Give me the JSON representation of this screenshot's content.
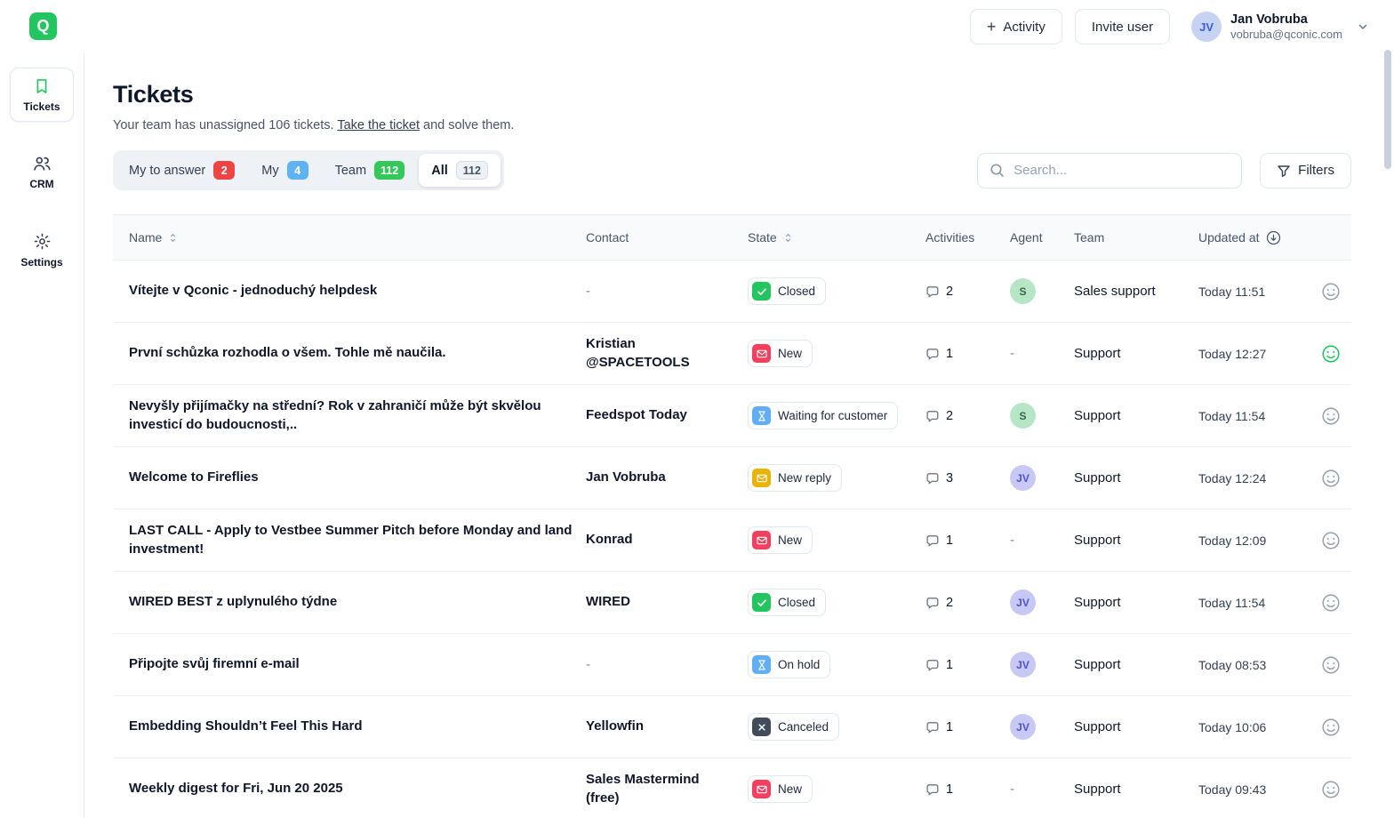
{
  "app": {
    "logo_letter": "Q",
    "brand_color": "#22c55e"
  },
  "topbar": {
    "activity_button": "Activity",
    "invite_button": "Invite user",
    "user": {
      "initials": "JV",
      "name": "Jan Vobruba",
      "email": "vobruba@qconic.com"
    }
  },
  "sidebar": {
    "items": [
      {
        "label": "Tickets",
        "icon": "bookmark-icon",
        "active": true
      },
      {
        "label": "CRM",
        "icon": "people-icon",
        "active": false
      },
      {
        "label": "Settings",
        "icon": "gear-icon",
        "active": false
      }
    ]
  },
  "page": {
    "title": "Tickets",
    "subtitle_prefix": "Your team has unassigned 106 tickets. ",
    "subtitle_link": "Take the ticket",
    "subtitle_suffix": " and solve them."
  },
  "tabs": [
    {
      "label": "My to answer",
      "count": "2",
      "badge_bg": "#ef4444",
      "badge_fg": "#ffffff",
      "active": false
    },
    {
      "label": "My",
      "count": "4",
      "badge_bg": "#5fb3f5",
      "badge_fg": "#ffffff",
      "active": false
    },
    {
      "label": "Team",
      "count": "112",
      "badge_bg": "#34c759",
      "badge_fg": "#ffffff",
      "active": false
    },
    {
      "label": "All",
      "count": "112",
      "badge_bg": "#eef1f5",
      "badge_fg": "#475569",
      "badge_border": "#d8dee6",
      "active": true
    }
  ],
  "search": {
    "placeholder": "Search..."
  },
  "filters_label": "Filters",
  "state_styles": {
    "closed": {
      "color": "#22c55e",
      "icon": "check"
    },
    "new": {
      "color": "#f43f5e",
      "icon": "envelope"
    },
    "waiting": {
      "color": "#62aef5",
      "icon": "hourglass"
    },
    "new_reply": {
      "color": "#eab308",
      "icon": "envelope"
    },
    "on_hold": {
      "color": "#62aef5",
      "icon": "hourglass"
    },
    "canceled": {
      "color": "#414b5a",
      "icon": "x"
    }
  },
  "avatar_styles": {
    "green": {
      "bg": "#b7e6c6",
      "fg": "#35684a"
    },
    "purple": {
      "bg": "#c7c8f3",
      "fg": "#5350c9"
    }
  },
  "table": {
    "columns": [
      {
        "label": "Name",
        "sort": "sortable"
      },
      {
        "label": "Contact",
        "sort": "none"
      },
      {
        "label": "State",
        "sort": "sortable"
      },
      {
        "label": "Activities",
        "sort": "none"
      },
      {
        "label": "Agent",
        "sort": "none"
      },
      {
        "label": "Team",
        "sort": "none"
      },
      {
        "label": "Updated at",
        "sort": "desc"
      }
    ],
    "rows": [
      {
        "name": "Vítejte v Qconic - jednoduchý helpdesk",
        "contact": "-",
        "state": "Closed",
        "state_type": "closed",
        "activities": "2",
        "agent": "S",
        "agent_style": "green",
        "team": "Sales support",
        "updated": "Today 11:51",
        "satisfaction": "neutral"
      },
      {
        "name": "První schůzka rozhodla o všem. Tohle mě naučila.",
        "contact": "Kristian @SPACETOOLS",
        "state": "New",
        "state_type": "new",
        "activities": "1",
        "agent": "",
        "agent_style": "",
        "team": "Support",
        "updated": "Today 12:27",
        "satisfaction": "positive"
      },
      {
        "name": "Nevyšly přijímačky na střední? Rok v zahraničí může být skvělou investicí do budoucnosti,..",
        "contact": "Feedspot Today",
        "state": "Waiting for customer",
        "state_type": "waiting",
        "activities": "2",
        "agent": "S",
        "agent_style": "green",
        "team": "Support",
        "updated": "Today 11:54",
        "satisfaction": "neutral"
      },
      {
        "name": "Welcome to Fireflies",
        "contact": "Jan Vobruba",
        "state": "New reply",
        "state_type": "new_reply",
        "activities": "3",
        "agent": "JV",
        "agent_style": "purple",
        "team": "Support",
        "updated": "Today 12:24",
        "satisfaction": "neutral"
      },
      {
        "name": "LAST CALL - Apply to Vestbee Summer Pitch before Monday and land investment!",
        "contact": "Konrad",
        "state": "New",
        "state_type": "new",
        "activities": "1",
        "agent": "",
        "agent_style": "",
        "team": "Support",
        "updated": "Today 12:09",
        "satisfaction": "neutral"
      },
      {
        "name": "WIRED BEST z uplynulého týdne",
        "contact": "WIRED",
        "state": "Closed",
        "state_type": "closed",
        "activities": "2",
        "agent": "JV",
        "agent_style": "purple",
        "team": "Support",
        "updated": "Today 11:54",
        "satisfaction": "neutral"
      },
      {
        "name": "Připojte svůj firemní e-mail",
        "contact": "-",
        "state": "On hold",
        "state_type": "on_hold",
        "activities": "1",
        "agent": "JV",
        "agent_style": "purple",
        "team": "Support",
        "updated": "Today 08:53",
        "satisfaction": "neutral"
      },
      {
        "name": "Embedding Shouldn’t Feel This Hard",
        "contact": "Yellowfin",
        "state": "Canceled",
        "state_type": "canceled",
        "activities": "1",
        "agent": "JV",
        "agent_style": "purple",
        "team": "Support",
        "updated": "Today 10:06",
        "satisfaction": "neutral"
      },
      {
        "name": "Weekly digest for Fri, Jun 20 2025",
        "contact": "Sales Mastermind (free)",
        "state": "New",
        "state_type": "new",
        "activities": "1",
        "agent": "",
        "agent_style": "",
        "team": "Support",
        "updated": "Today 09:43",
        "satisfaction": "neutral"
      }
    ]
  }
}
